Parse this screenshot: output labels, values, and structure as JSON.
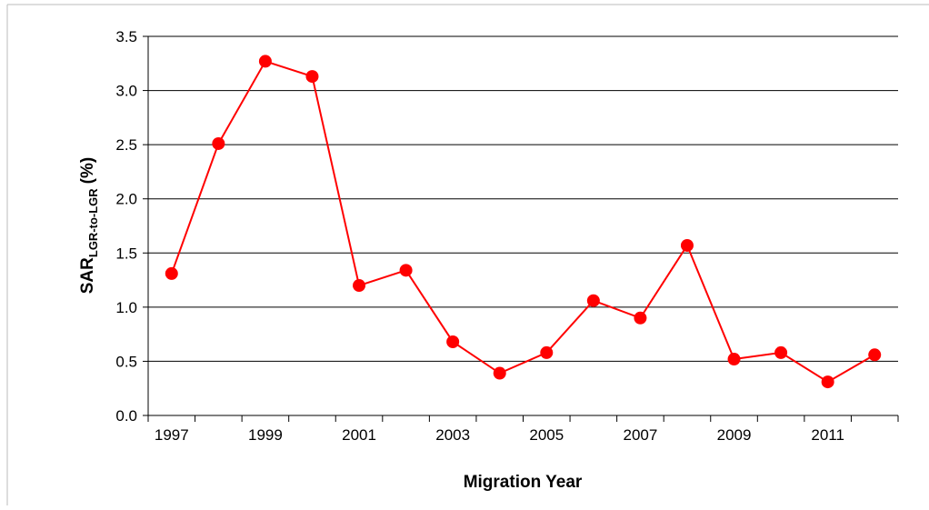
{
  "chart_data": {
    "type": "line",
    "x_label": "Migration Year",
    "y_label": {
      "main": "SAR",
      "subscript": "LGR-to-LGR",
      "suffix": "(%)"
    },
    "categories": [
      "1997",
      null,
      "1999",
      null,
      "2001",
      null,
      "2003",
      null,
      "2005",
      null,
      "2007",
      null,
      "2009",
      null,
      "2011",
      null
    ],
    "series": [
      {
        "color": "#ff0000",
        "values": [
          1.31,
          2.51,
          3.27,
          3.13,
          1.2,
          1.34,
          0.68,
          0.39,
          0.58,
          1.06,
          0.9,
          1.57,
          0.52,
          0.58,
          0.31,
          0.56
        ]
      }
    ],
    "ylim": [
      0,
      3.5
    ],
    "yticks": [
      {
        "value": 0,
        "label": "0.0"
      },
      0.5,
      {
        "value": 1,
        "label": "1.0"
      },
      1.5,
      {
        "value": 2,
        "label": "2.0"
      },
      2.5,
      {
        "value": 3,
        "label": "3.0"
      },
      3.5
    ],
    "grid": true
  }
}
